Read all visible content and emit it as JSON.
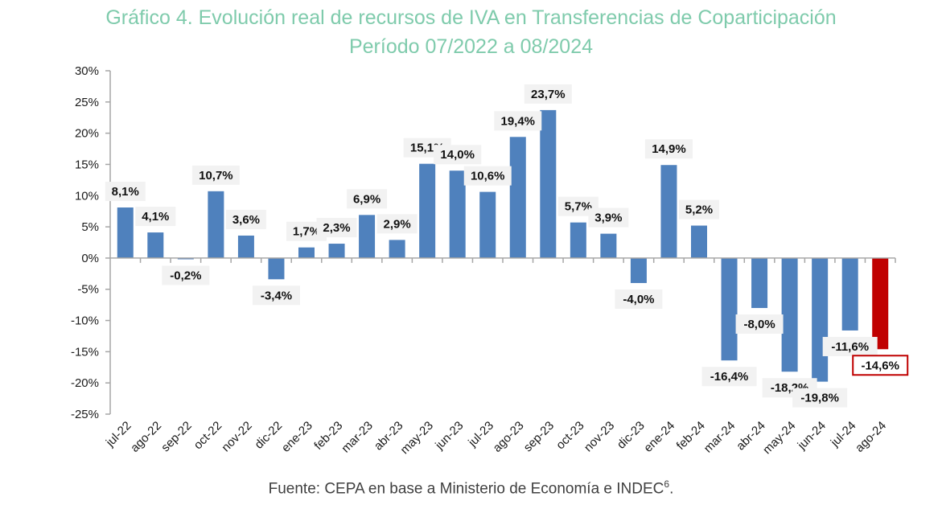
{
  "chart_data": {
    "type": "bar",
    "title": "Gráfico 4. Evolución real de recursos de IVA en Transferencias de Coparticipación",
    "subtitle": "Período 07/2022 a 08/2024",
    "xlabel": "",
    "ylabel": "",
    "ylim": [
      -25,
      30
    ],
    "yticks": [
      30,
      25,
      20,
      15,
      10,
      5,
      0,
      -5,
      -10,
      -15,
      -20,
      -25
    ],
    "ytick_labels": [
      "30%",
      "25%",
      "20%",
      "15%",
      "10%",
      "5%",
      "0%",
      "-5%",
      "-10%",
      "-15%",
      "-20%",
      "-25%"
    ],
    "grid": false,
    "legend": "none",
    "categories": [
      "jul-22",
      "ago-22",
      "sep-22",
      "oct-22",
      "nov-22",
      "dic-22",
      "ene-23",
      "feb-23",
      "mar-23",
      "abr-23",
      "may-23",
      "jun-23",
      "jul-23",
      "ago-23",
      "sep-23",
      "oct-23",
      "nov-23",
      "dic-23",
      "ene-24",
      "feb-24",
      "mar-24",
      "abr-24",
      "may-24",
      "jun-24",
      "jul-24",
      "ago-24"
    ],
    "values": [
      8.1,
      4.1,
      -0.2,
      10.7,
      3.6,
      -3.4,
      1.7,
      2.3,
      6.9,
      2.9,
      15.1,
      14.0,
      10.6,
      19.4,
      23.7,
      5.7,
      3.9,
      -4.0,
      14.9,
      5.2,
      -16.4,
      -8.0,
      -18.2,
      -19.8,
      -11.6,
      -14.6
    ],
    "data_labels": [
      "8,1%",
      "4,1%",
      "-0,2%",
      "10,7%",
      "3,6%",
      "-3,4%",
      "1,7%",
      "2,3%",
      "6,9%",
      "2,9%",
      "15,1%",
      "14,0%",
      "10,6%",
      "19,4%",
      "23,7%",
      "5,7%",
      "3,9%",
      "-4,0%",
      "14,9%",
      "5,2%",
      "-16,4%",
      "-8,0%",
      "-18,2%",
      "-19,8%",
      "-11,6%",
      "-14,6%"
    ],
    "colors": {
      "default": "#4f81bd",
      "highlight": "#c00000"
    },
    "highlight_index": 25
  },
  "footer": {
    "source_text": "Fuente: CEPA en base a Ministerio de Economía e INDEC",
    "footnote_ref": "6",
    "source_end": "."
  }
}
